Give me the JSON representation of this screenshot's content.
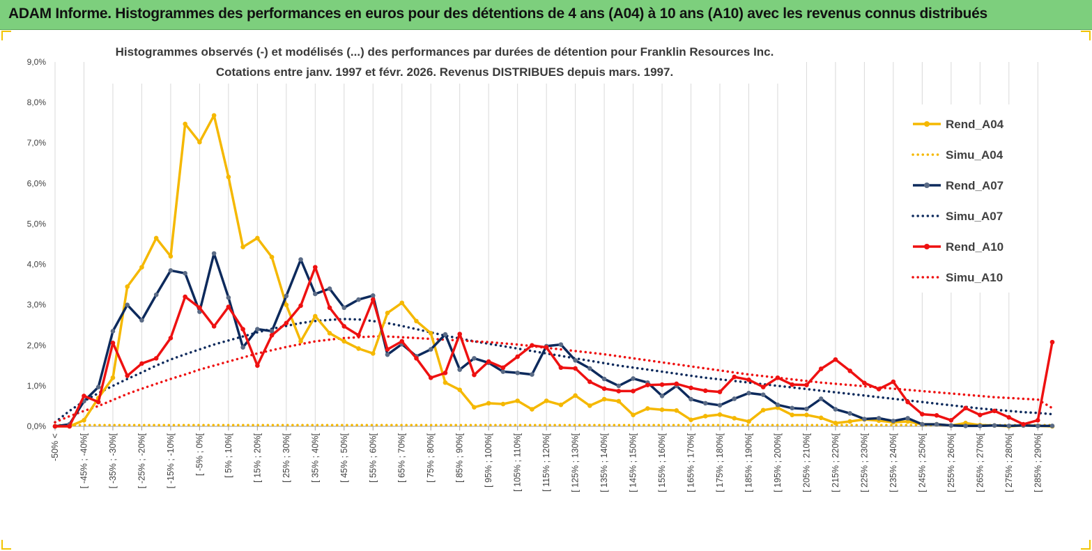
{
  "banner": {
    "title": "ADAM Informe. Histogrammes des performances en euros pour des détentions de 4 ans (A04) à 10 ans (A10) avec les revenus connus distribués"
  },
  "chart_data": {
    "type": "line",
    "subtitle_line1": "Histogrammes observés (-) et modélisés (...)  des performances par durées de détention pour Franklin Resources Inc.",
    "subtitle_line2": "Cotations entre janv. 1997 et févr. 2026. Revenus DISTRIBUES depuis mars. 1997.",
    "ylim": [
      0,
      9
    ],
    "y_ticks": [
      "0,0%",
      "1,0%",
      "2,0%",
      "3,0%",
      "4,0%",
      "5,0%",
      "6,0%",
      "7,0%",
      "8,0%",
      "9,0%"
    ],
    "categories_shown": [
      "-50% <",
      "[ -45% ; -40%[",
      "[ -35% ; -30%[",
      "[ -25% ; -20%[",
      "[ -15% ; -10%[",
      "[ -5% ; 0%[",
      "[ 5% ; 10%[",
      "[ 15% ; 20%[",
      "[ 25% ; 30%[",
      "[ 35% ; 40%[",
      "[ 45% ; 50%[",
      "[ 55% ; 60%[",
      "[ 65% ; 70%[",
      "[ 75% ; 80%[",
      "[ 85% ; 90%[",
      "[ 95% ; 100%[",
      "[ 105% ; 110%[",
      "[ 115% ; 120%[",
      "[ 125% ; 130%[",
      "[ 135% ; 140%[",
      "[ 145% ; 150%[",
      "[ 155% ; 160%[",
      "[ 165% ; 170%[",
      "[ 175% ; 180%[",
      "[ 185% ; 190%[",
      "[ 195% ; 200%[",
      "[ 205% ; 210%[",
      "[ 215% ; 220%[",
      "[ 225% ; 230%[",
      "[ 235% ; 240%[",
      "[ 245% ; 250%[",
      "[ 255% ; 260%[",
      "[ 265% ; 270%[",
      "[ 275% ; 280%[",
      "[ 285% ; 290%["
    ],
    "series": [
      {
        "name": "Rend_A04",
        "style": "solid",
        "color": "#f5b800",
        "values": [
          0.0,
          0.0,
          0.15,
          0.7,
          1.2,
          3.45,
          3.93,
          4.65,
          4.2,
          7.47,
          7.02,
          7.68,
          6.16,
          4.43,
          4.65,
          4.18,
          3.0,
          2.1,
          2.72,
          2.3,
          2.1,
          1.92,
          1.8,
          2.8,
          3.05,
          2.6,
          2.3,
          1.08,
          0.9,
          0.47,
          0.57,
          0.55,
          0.63,
          0.42,
          0.63,
          0.53,
          0.76,
          0.51,
          0.67,
          0.62,
          0.28,
          0.44,
          0.41,
          0.39,
          0.16,
          0.25,
          0.29,
          0.2,
          0.12,
          0.4,
          0.46,
          0.28,
          0.28,
          0.21,
          0.08,
          0.12,
          0.17,
          0.14,
          0.1,
          0.12,
          0.05,
          0.05,
          0.02,
          0.08,
          0.03,
          0.02,
          0.0,
          0.02,
          0.01,
          0.0
        ]
      },
      {
        "name": "Simu_A04",
        "style": "dotted",
        "color": "#f5b800",
        "values": [
          0.03,
          0.03,
          0.03,
          0.03,
          0.03,
          0.03,
          0.03,
          0.03,
          0.03,
          0.03,
          0.03,
          0.03,
          0.03,
          0.03,
          0.03,
          0.03,
          0.03,
          0.03,
          0.03,
          0.03,
          0.03,
          0.03,
          0.03,
          0.03,
          0.03,
          0.03,
          0.03,
          0.03,
          0.03,
          0.03,
          0.03,
          0.03,
          0.03,
          0.03,
          0.03,
          0.03,
          0.03,
          0.03,
          0.03,
          0.03,
          0.03,
          0.03,
          0.03,
          0.03,
          0.03,
          0.03,
          0.03,
          0.03,
          0.03,
          0.03,
          0.03,
          0.03,
          0.03,
          0.03,
          0.03,
          0.03,
          0.03,
          0.03,
          0.03,
          0.03,
          0.03,
          0.03,
          0.03,
          0.03,
          0.03,
          0.03,
          0.03,
          0.03,
          0.03,
          0.03
        ]
      },
      {
        "name": "Rend_A07",
        "style": "solid",
        "color": "#0d2a5c",
        "values": [
          0.0,
          0.05,
          0.62,
          0.97,
          2.35,
          3.0,
          2.62,
          3.25,
          3.85,
          3.78,
          2.83,
          4.27,
          3.18,
          1.95,
          2.4,
          2.35,
          3.22,
          4.12,
          3.27,
          3.4,
          2.93,
          3.13,
          3.23,
          1.77,
          2.03,
          1.73,
          1.9,
          2.27,
          1.4,
          1.68,
          1.57,
          1.35,
          1.32,
          1.28,
          1.98,
          2.02,
          1.63,
          1.43,
          1.17,
          1.0,
          1.18,
          1.08,
          0.75,
          1.0,
          0.67,
          0.57,
          0.52,
          0.68,
          0.82,
          0.78,
          0.53,
          0.45,
          0.43,
          0.68,
          0.42,
          0.32,
          0.18,
          0.2,
          0.13,
          0.2,
          0.05,
          0.05,
          0.02,
          0.01,
          0.01,
          0.02,
          0.01,
          0.02,
          0.01,
          0.01
        ]
      },
      {
        "name": "Simu_A07",
        "style": "dotted",
        "color": "#0d2a5c",
        "values": [
          0.1,
          0.38,
          0.62,
          0.82,
          1.0,
          1.17,
          1.33,
          1.5,
          1.65,
          1.78,
          1.9,
          2.02,
          2.12,
          2.22,
          2.32,
          2.41,
          2.48,
          2.55,
          2.6,
          2.63,
          2.65,
          2.64,
          2.6,
          2.55,
          2.48,
          2.4,
          2.32,
          2.24,
          2.17,
          2.1,
          2.04,
          1.98,
          1.92,
          1.86,
          1.8,
          1.74,
          1.68,
          1.62,
          1.56,
          1.5,
          1.45,
          1.4,
          1.35,
          1.3,
          1.25,
          1.2,
          1.16,
          1.12,
          1.08,
          1.04,
          1.0,
          0.96,
          0.92,
          0.88,
          0.84,
          0.8,
          0.76,
          0.72,
          0.68,
          0.64,
          0.6,
          0.56,
          0.52,
          0.48,
          0.44,
          0.41,
          0.38,
          0.35,
          0.33,
          0.3
        ]
      },
      {
        "name": "Rend_A10",
        "style": "solid",
        "color": "#ee1111",
        "values": [
          0.0,
          0.0,
          0.75,
          0.6,
          2.06,
          1.25,
          1.55,
          1.68,
          2.18,
          3.2,
          2.93,
          2.47,
          2.95,
          2.4,
          1.5,
          2.25,
          2.55,
          2.98,
          3.93,
          2.93,
          2.47,
          2.25,
          3.13,
          1.9,
          2.1,
          1.68,
          1.2,
          1.32,
          2.28,
          1.27,
          1.6,
          1.45,
          1.72,
          2.0,
          1.95,
          1.45,
          1.43,
          1.1,
          0.93,
          0.87,
          0.87,
          1.02,
          1.03,
          1.05,
          0.95,
          0.88,
          0.85,
          1.22,
          1.15,
          0.97,
          1.2,
          1.03,
          1.02,
          1.42,
          1.65,
          1.37,
          1.07,
          0.92,
          1.1,
          0.6,
          0.3,
          0.27,
          0.15,
          0.45,
          0.28,
          0.38,
          0.22,
          0.05,
          0.15,
          2.08
        ]
      },
      {
        "name": "Simu_A10",
        "style": "dotted",
        "color": "#ee1111",
        "values": [
          0.1,
          0.25,
          0.38,
          0.5,
          0.65,
          0.8,
          0.93,
          1.05,
          1.17,
          1.28,
          1.4,
          1.5,
          1.6,
          1.7,
          1.8,
          1.88,
          1.96,
          2.03,
          2.1,
          2.14,
          2.18,
          2.2,
          2.22,
          2.22,
          2.2,
          2.18,
          2.16,
          2.14,
          2.12,
          2.1,
          2.08,
          2.05,
          2.02,
          1.98,
          1.94,
          1.9,
          1.86,
          1.82,
          1.78,
          1.73,
          1.68,
          1.63,
          1.58,
          1.53,
          1.48,
          1.43,
          1.38,
          1.33,
          1.28,
          1.24,
          1.2,
          1.16,
          1.12,
          1.08,
          1.05,
          1.02,
          0.99,
          0.96,
          0.93,
          0.9,
          0.87,
          0.84,
          0.81,
          0.78,
          0.75,
          0.72,
          0.7,
          0.68,
          0.66,
          0.45
        ]
      }
    ],
    "legend_position": "right",
    "grid": "vertical"
  }
}
